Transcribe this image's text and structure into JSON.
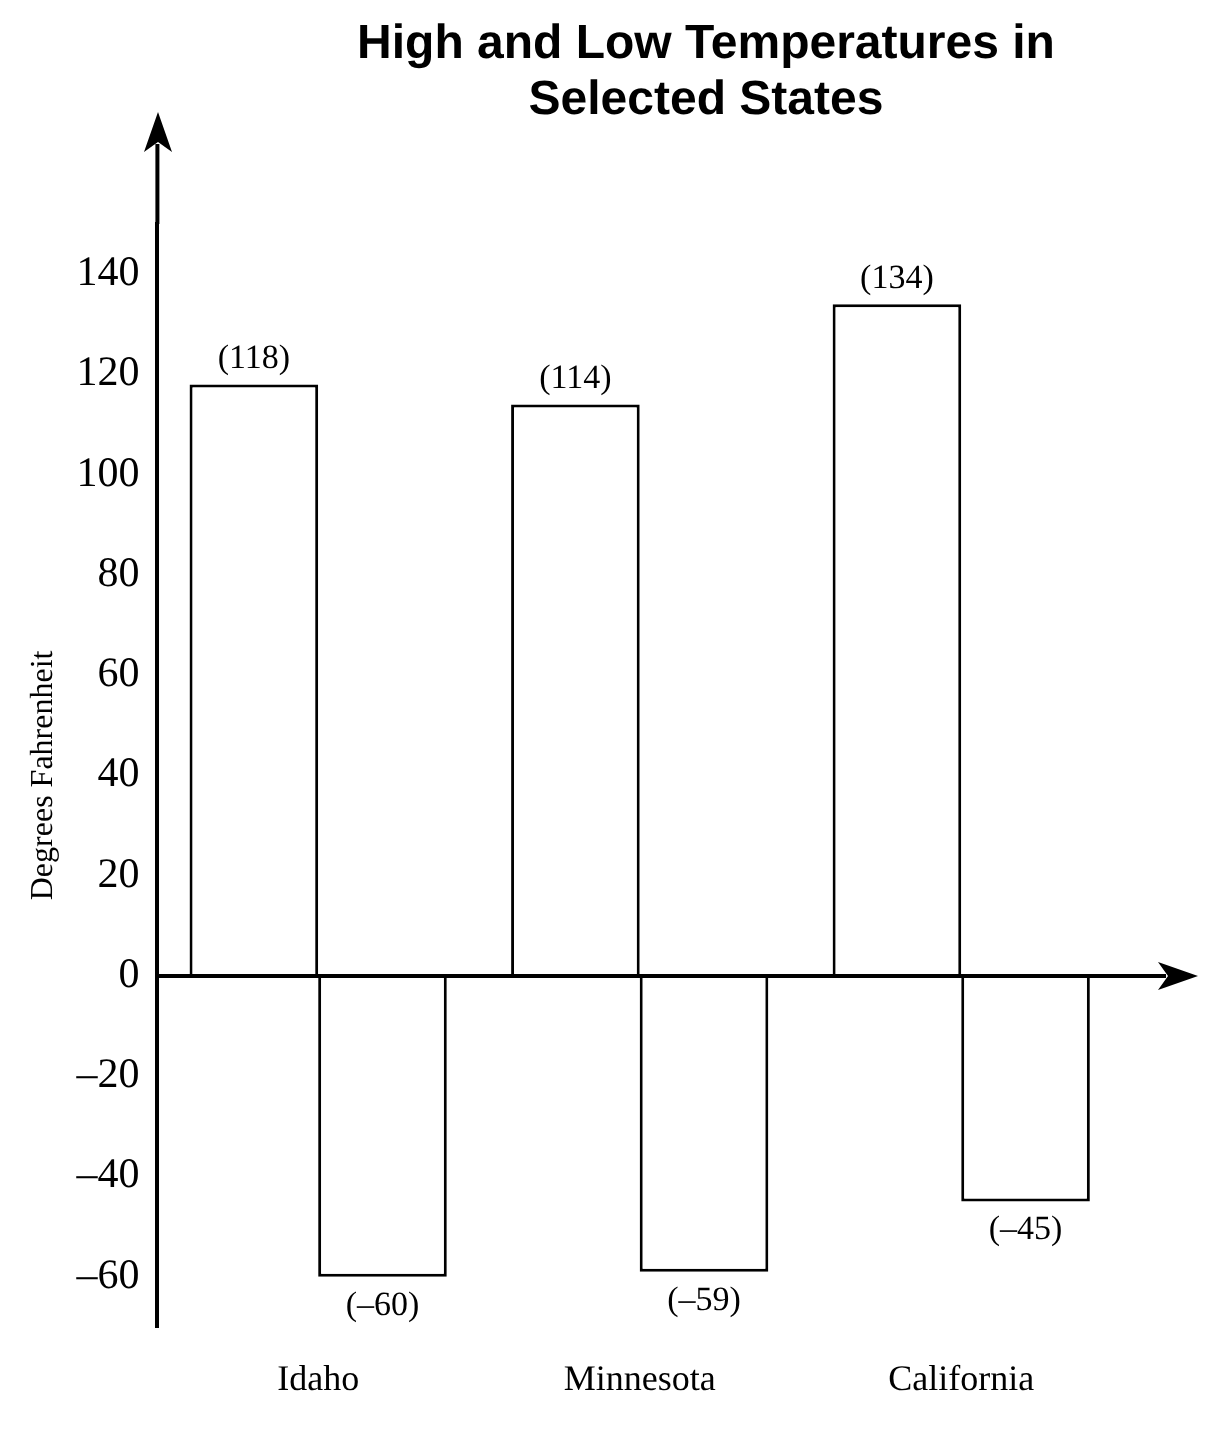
{
  "chart_data": {
    "type": "bar",
    "title": "High and Low Temperatures in Selected States",
    "ylabel": "Degrees Fahrenheit",
    "categories": [
      "Idaho",
      "Minnesota",
      "California"
    ],
    "series": [
      {
        "color": "#ffffff",
        "values": [
          118,
          114,
          134
        ],
        "value_labels": [
          "(118)",
          "(114)",
          "(134)"
        ]
      },
      {
        "color": "#ffffff",
        "values": [
          -60,
          -59,
          -45
        ],
        "value_labels": [
          "(–60)",
          "(–59)",
          "(–45)"
        ]
      }
    ],
    "ylim": [
      -70,
      150
    ],
    "yticks": [
      {
        "value": -60,
        "label": "–60"
      },
      {
        "value": -40,
        "label": "–40"
      },
      {
        "value": -20,
        "label": "–20"
      },
      0,
      20,
      40,
      60,
      80,
      100,
      120,
      140
    ]
  }
}
